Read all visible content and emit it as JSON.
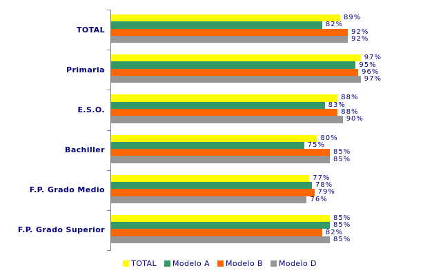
{
  "chart_data": {
    "type": "bar",
    "orientation": "horizontal",
    "title": "",
    "xlabel": "",
    "ylabel": "",
    "xlim": [
      0,
      100
    ],
    "grid": false,
    "data_labels": true,
    "value_suffix": "%",
    "legend_position": "bottom",
    "categories": [
      "TOTAL",
      "Primaria",
      "E.S.O.",
      "Bachiller",
      "F.P. Grado Medio",
      "F.P. Grado Superior"
    ],
    "series": [
      {
        "name": "TOTAL",
        "color": "#FFFF00",
        "pattern": "solid",
        "values": [
          89,
          97,
          88,
          80,
          77,
          85
        ]
      },
      {
        "name": "Modelo A",
        "color": "#339966",
        "pattern": "solid",
        "values": [
          82,
          95,
          83,
          75,
          78,
          85
        ]
      },
      {
        "name": "Modelo B",
        "color": "#FF6600",
        "pattern": "solid",
        "values": [
          92,
          96,
          88,
          85,
          79,
          82
        ]
      },
      {
        "name": "Modelo D",
        "color": "#969696",
        "pattern": "dotted",
        "values": [
          92,
          97,
          90,
          85,
          76,
          85
        ]
      }
    ]
  },
  "style": {
    "text_color": "#000080",
    "axis_color": "#808080",
    "background": "#FFFFFF"
  }
}
